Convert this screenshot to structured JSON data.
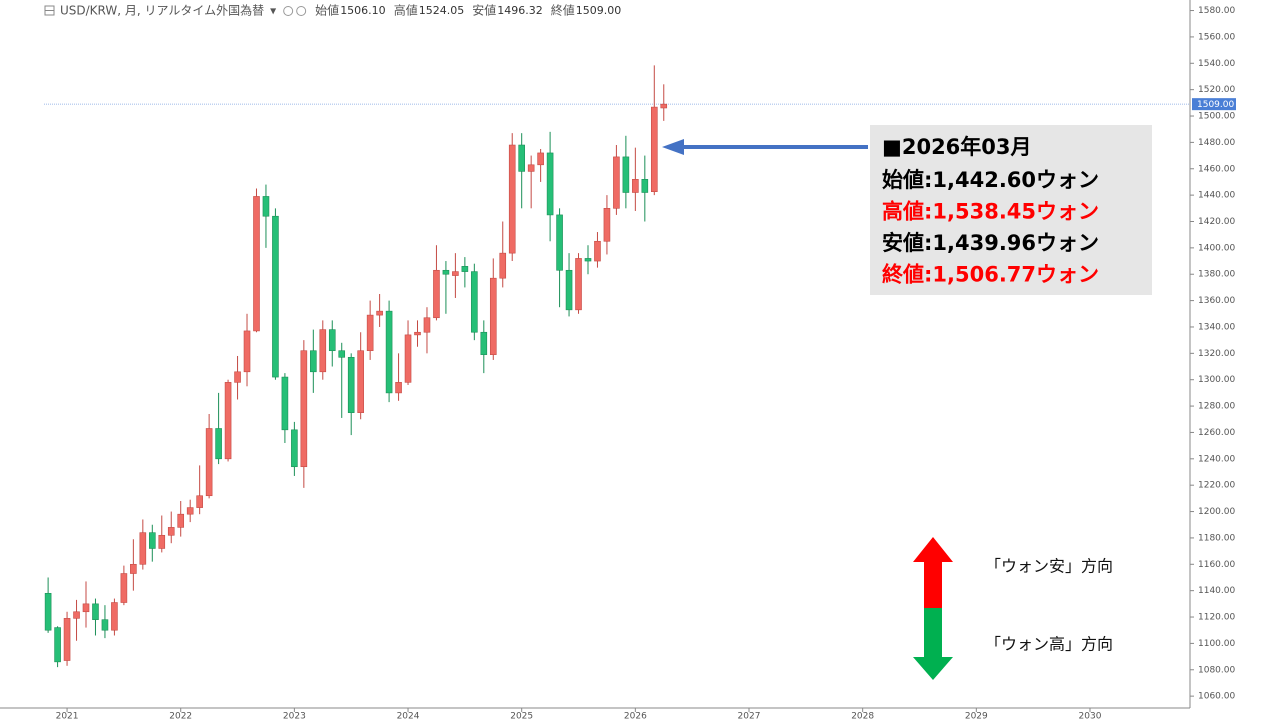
{
  "header": {
    "symbol": "USD/KRW, 月, リアルタイム外国為替",
    "ohlc": [
      {
        "label": "始値",
        "value": "1506.10"
      },
      {
        "label": "高値",
        "value": "1524.05"
      },
      {
        "label": "安値",
        "value": "1496.32"
      },
      {
        "label": "終値",
        "value": "1509.00"
      }
    ]
  },
  "chart_data": {
    "type": "candlestick",
    "x": [
      "2020-11",
      "2020-12",
      "2021-01",
      "2021-02",
      "2021-03",
      "2021-04",
      "2021-05",
      "2021-06",
      "2021-07",
      "2021-08",
      "2021-09",
      "2021-10",
      "2021-11",
      "2021-12",
      "2022-01",
      "2022-02",
      "2022-03",
      "2022-04",
      "2022-05",
      "2022-06",
      "2022-07",
      "2022-08",
      "2022-09",
      "2022-10",
      "2022-11",
      "2022-12",
      "2023-01",
      "2023-02",
      "2023-03",
      "2023-04",
      "2023-05",
      "2023-06",
      "2023-07",
      "2023-08",
      "2023-09",
      "2023-10",
      "2023-11",
      "2023-12",
      "2024-01",
      "2024-02",
      "2024-03",
      "2024-04",
      "2024-05",
      "2024-06",
      "2024-07",
      "2024-08",
      "2024-09",
      "2024-10",
      "2024-11",
      "2024-12",
      "2025-01",
      "2025-02",
      "2025-03",
      "2025-04",
      "2025-05",
      "2025-06",
      "2025-07",
      "2025-08",
      "2025-09",
      "2025-10",
      "2025-11",
      "2025-12",
      "2026-01",
      "2026-02",
      "2026-03",
      "2026-04"
    ],
    "open": [
      1138,
      1112,
      1087,
      1119,
      1124,
      1130,
      1118,
      1110,
      1131,
      1153,
      1160,
      1184,
      1172,
      1182,
      1188,
      1198,
      1203,
      1212,
      1263,
      1240,
      1298,
      1306,
      1337,
      1439,
      1424,
      1302,
      1262,
      1234,
      1322,
      1306,
      1338,
      1322,
      1317,
      1275,
      1322,
      1349,
      1352,
      1290,
      1298,
      1334,
      1336,
      1347,
      1383,
      1379,
      1386,
      1382,
      1336,
      1319,
      1377,
      1396,
      1478,
      1458,
      1463,
      1472,
      1425,
      1383,
      1353,
      1392,
      1390,
      1405,
      1430,
      1469,
      1442,
      1452,
      1442.6,
      1506.1
    ],
    "high": [
      1150,
      1113,
      1124,
      1133,
      1147,
      1134,
      1129,
      1134,
      1159,
      1179,
      1194,
      1190,
      1197,
      1200,
      1208,
      1209,
      1235,
      1274,
      1290,
      1300,
      1318,
      1350,
      1445,
      1448,
      1430,
      1305,
      1268,
      1330,
      1338,
      1345,
      1345,
      1328,
      1320,
      1336,
      1360,
      1365,
      1360,
      1320,
      1345,
      1345,
      1355,
      1402,
      1390,
      1396,
      1393,
      1388,
      1345,
      1392,
      1420,
      1487,
      1487,
      1470,
      1475,
      1488,
      1430,
      1396,
      1396,
      1402,
      1412,
      1440,
      1478,
      1485,
      1476,
      1470,
      1538.45,
      1524.05
    ],
    "low": [
      1108,
      1082,
      1083,
      1102,
      1112,
      1106,
      1104,
      1106,
      1129,
      1140,
      1156,
      1162,
      1169,
      1176,
      1181,
      1192,
      1198,
      1210,
      1236,
      1238,
      1285,
      1295,
      1336,
      1400,
      1300,
      1252,
      1227,
      1218,
      1290,
      1300,
      1310,
      1271,
      1258,
      1270,
      1315,
      1340,
      1283,
      1284,
      1296,
      1325,
      1320,
      1345,
      1350,
      1362,
      1370,
      1330,
      1305,
      1315,
      1370,
      1390,
      1430,
      1430,
      1450,
      1405,
      1355,
      1348,
      1350,
      1380,
      1385,
      1395,
      1425,
      1430,
      1428,
      1420,
      1439.96,
      1496.32
    ],
    "close": [
      1110,
      1086,
      1119,
      1124,
      1130,
      1118,
      1110,
      1131,
      1153,
      1160,
      1184,
      1172,
      1182,
      1188,
      1198,
      1203,
      1212,
      1263,
      1240,
      1298,
      1306,
      1337,
      1439,
      1424,
      1302,
      1262,
      1234,
      1322,
      1306,
      1338,
      1322,
      1317,
      1275,
      1322,
      1349,
      1352,
      1290,
      1298,
      1334,
      1336,
      1347,
      1383,
      1380,
      1382,
      1382,
      1336,
      1319,
      1377,
      1396,
      1478,
      1458,
      1463,
      1472,
      1425,
      1383,
      1353,
      1392,
      1390,
      1405,
      1430,
      1469,
      1442,
      1452,
      1442,
      1506.77,
      1509.0
    ],
    "up_color": "#ef6b64",
    "down_color": "#26bf77",
    "up_border": "#c44a44",
    "down_border": "#1b8f57",
    "xlim": [
      2020.41,
      2030.88
    ],
    "xticks": [
      2021,
      2022,
      2023,
      2024,
      2025,
      2026,
      2027,
      2028,
      2029,
      2030
    ],
    "ylim": [
      1051,
      1588
    ],
    "yticks": [
      {
        "value": 1060,
        "label": "1060.00"
      },
      {
        "value": 1080,
        "label": "1080.00"
      },
      {
        "value": 1100,
        "label": "1100.00"
      },
      {
        "value": 1120,
        "label": "1120.00"
      },
      {
        "value": 1140,
        "label": "1140.00"
      },
      {
        "value": 1160,
        "label": "1160.00"
      },
      {
        "value": 1180,
        "label": "1180.00"
      },
      {
        "value": 1200,
        "label": "1200.00"
      },
      {
        "value": 1220,
        "label": "1220.00"
      },
      {
        "value": 1240,
        "label": "1240.00"
      },
      {
        "value": 1260,
        "label": "1260.00"
      },
      {
        "value": 1280,
        "label": "1280.00"
      },
      {
        "value": 1300,
        "label": "1300.00"
      },
      {
        "value": 1320,
        "label": "1320.00"
      },
      {
        "value": 1340,
        "label": "1340.00"
      },
      {
        "value": 1360,
        "label": "1360.00"
      },
      {
        "value": 1380,
        "label": "1380.00"
      },
      {
        "value": 1400,
        "label": "1400.00"
      },
      {
        "value": 1420,
        "label": "1420.00"
      },
      {
        "value": 1440,
        "label": "1440.00"
      },
      {
        "value": 1460,
        "label": "1460.00"
      },
      {
        "value": 1480,
        "label": "1480.00"
      },
      {
        "value": 1500,
        "label": "1500.00"
      },
      {
        "value": 1520,
        "label": "1520.00"
      },
      {
        "value": 1540,
        "label": "1540.00"
      },
      {
        "value": 1560,
        "label": "1560.00"
      },
      {
        "value": 1580,
        "label": "1580.00"
      }
    ],
    "last_price": {
      "value": 1509,
      "label": "1509.00",
      "color": "#4a7fd6"
    },
    "annotation": {
      "title": "■2026年03月",
      "lines": [
        {
          "text": "始値:1,442.60ウォン",
          "color": "#000000"
        },
        {
          "text": "高値:1,538.45ウォン",
          "color": "#ff0000"
        },
        {
          "text": "安値:1,439.96ウォン",
          "color": "#000000"
        },
        {
          "text": "終値:1,506.77ウォン",
          "color": "#ff0000"
        }
      ]
    },
    "direction_labels": [
      "「ウォン安」方向",
      "「ウォン高」方向"
    ]
  }
}
